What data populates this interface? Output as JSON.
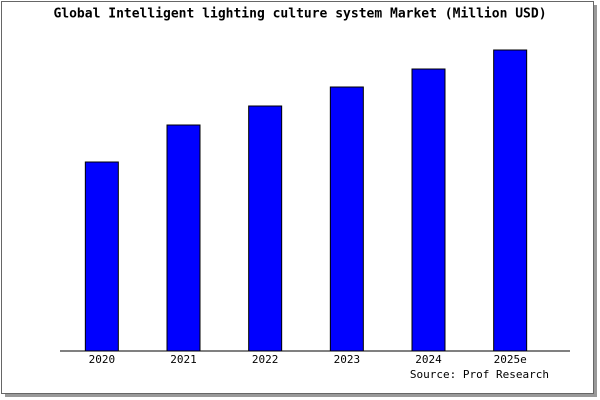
{
  "chart_data": {
    "type": "bar",
    "title": "Global Intelligent lighting culture system Market (Million USD)",
    "categories": [
      "2020",
      "2021",
      "2022",
      "2023",
      "2024",
      "2025e"
    ],
    "values": [
      189,
      226,
      245,
      264,
      282,
      301
    ],
    "color": "#0000ff",
    "ylim": [
      0,
      306
    ],
    "source": "Source: Prof Research"
  }
}
